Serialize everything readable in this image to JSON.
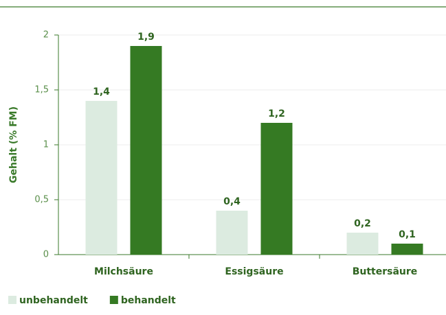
{
  "chart_data": {
    "type": "bar",
    "y_label": "Gehalt (% FM)",
    "categories": [
      "Milchsäure",
      "Essigsäure",
      "Buttersäure"
    ],
    "series": [
      {
        "name": "unbehandelt",
        "color": "#dcebe0",
        "values": [
          1.4,
          0.4,
          0.2
        ],
        "value_labels": [
          "1,4",
          "0,4",
          "0,2"
        ]
      },
      {
        "name": "behandelt",
        "color": "#357a23",
        "values": [
          1.9,
          1.2,
          0.1
        ],
        "value_labels": [
          "1,9",
          "1,2",
          "0,1"
        ]
      }
    ],
    "ylim": [
      0,
      2
    ],
    "yticks": [
      0,
      {
        "value": 0.5,
        "label": "0,5"
      },
      1,
      {
        "value": 1.5,
        "label": "1,5"
      },
      2
    ],
    "grid": true,
    "legend": "bottom-left"
  }
}
